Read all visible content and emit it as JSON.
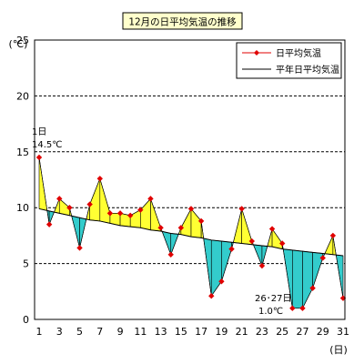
{
  "chart_data": {
    "type": "line",
    "title": "12月の日平均気温の推移",
    "ylabel": "(℃)",
    "xlabel": "(日)",
    "ylim": [
      0,
      25
    ],
    "yticks": [
      0,
      5,
      10,
      15,
      20,
      25
    ],
    "xlim": [
      1,
      31
    ],
    "xticks": [
      1,
      3,
      5,
      7,
      9,
      11,
      13,
      15,
      17,
      19,
      21,
      23,
      25,
      27,
      29,
      31
    ],
    "grid": "horizontal-dashed",
    "legend_position": "top-right",
    "x": [
      1,
      2,
      3,
      4,
      5,
      6,
      7,
      8,
      9,
      10,
      11,
      12,
      13,
      14,
      15,
      16,
      17,
      18,
      19,
      20,
      21,
      22,
      23,
      24,
      25,
      26,
      27,
      28,
      29,
      30,
      31
    ],
    "series": [
      {
        "name": "日平均気温",
        "color": "#e00000",
        "marker": "diamond",
        "values": [
          14.5,
          8.5,
          10.8,
          10.0,
          6.4,
          10.3,
          12.6,
          9.5,
          9.5,
          9.3,
          9.8,
          10.8,
          8.2,
          5.8,
          8.2,
          9.9,
          8.8,
          2.1,
          3.4,
          6.3,
          9.9,
          7.0,
          4.8,
          8.1,
          6.8,
          1.0,
          1.0,
          2.8,
          5.5,
          7.5,
          1.9
        ]
      },
      {
        "name": "平年日平均気温",
        "color": "#000000",
        "values": [
          9.9,
          9.7,
          9.5,
          9.3,
          9.1,
          8.9,
          8.8,
          8.6,
          8.4,
          8.3,
          8.2,
          8.0,
          7.9,
          7.7,
          7.6,
          7.4,
          7.3,
          7.1,
          7.0,
          6.9,
          6.8,
          6.7,
          6.6,
          6.5,
          6.3,
          6.2,
          6.1,
          6.0,
          5.9,
          5.8,
          5.7
        ]
      }
    ],
    "fill_above_color": "#ffff33",
    "fill_below_color": "#33cccc",
    "annotations": [
      {
        "id": "d1",
        "line1": "1日",
        "line2": "14.5℃",
        "x": 1,
        "y": 14.5
      },
      {
        "id": "d26",
        "line1": "26･27日",
        "line2": "1.0℃",
        "x": 26.5,
        "y": 1.0
      }
    ]
  }
}
